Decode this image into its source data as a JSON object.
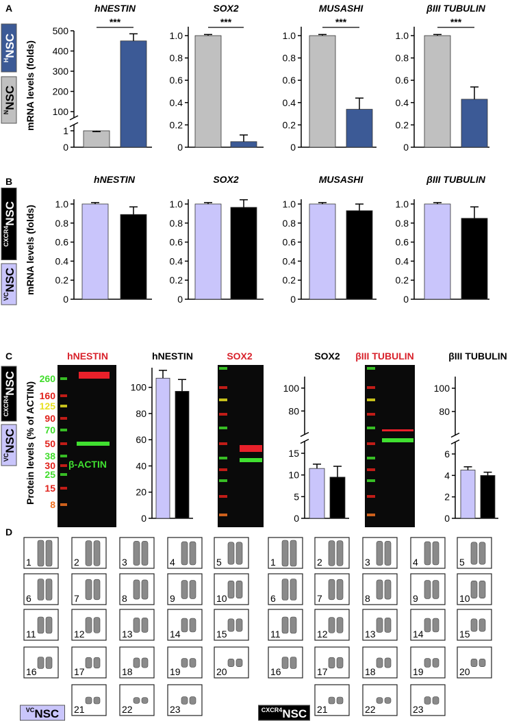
{
  "panels": [
    {
      "letter": "A",
      "y_label": "mRNA levels (folds)",
      "legend": [
        {
          "sup": "H",
          "label": "NSC",
          "color": "#3c5a96",
          "text_color": "#ffffff"
        },
        {
          "sup": "N",
          "label": "NSC",
          "color": "#c0c0c0",
          "text_color": "#000000"
        }
      ]
    },
    {
      "letter": "B",
      "y_label": "mRNA levels (folds)",
      "legend": [
        {
          "sup": "CXCR4",
          "label": "NSC",
          "color": "#000000",
          "text_color": "#ffffff"
        },
        {
          "sup": "VC",
          "label": "NSC",
          "color": "#c9c5fb",
          "text_color": "#000000"
        }
      ]
    },
    {
      "letter": "C",
      "y_label": "Protein levels (% of ACTIN)",
      "legend": [
        {
          "sup": "CXCR4",
          "label": "NSC",
          "color": "#000000",
          "text_color": "#ffffff"
        },
        {
          "sup": "VC",
          "label": "NSC",
          "color": "#c9c5fb",
          "text_color": "#000000"
        }
      ]
    },
    {
      "letter": "D"
    }
  ],
  "chart_data": [
    {
      "type": "bar",
      "title": "hNESTIN",
      "categories": [
        null,
        null
      ],
      "values": [
        1,
        450
      ],
      "errors": [
        0.05,
        35
      ],
      "colors": [
        "#c0c0c0",
        "#3c5a96"
      ],
      "ylim": [
        0,
        500
      ],
      "axis_break": [
        1,
        100
      ],
      "yticks": [
        0,
        1,
        100,
        200,
        300,
        400,
        500
      ],
      "annotation": "***"
    },
    {
      "type": "bar",
      "title": "SOX2",
      "categories": [
        null,
        null
      ],
      "values": [
        1,
        0.05
      ],
      "errors": [
        0.01,
        0.06
      ],
      "colors": [
        "#c0c0c0",
        "#3c5a96"
      ],
      "ylim": [
        0,
        1.08
      ],
      "yticks": [
        0,
        0.2,
        0.4,
        0.6,
        0.8,
        {
          "value": 1,
          "label": "1.0"
        }
      ],
      "annotation": "***"
    },
    {
      "type": "bar",
      "title": "MUSASHI",
      "categories": [
        null,
        null
      ],
      "values": [
        1,
        0.34
      ],
      "errors": [
        0.01,
        0.1
      ],
      "colors": [
        "#c0c0c0",
        "#3c5a96"
      ],
      "ylim": [
        0,
        1.08
      ],
      "yticks": [
        0,
        0.2,
        0.4,
        0.6,
        0.8,
        {
          "value": 1,
          "label": "1.0"
        }
      ],
      "annotation": "***"
    },
    {
      "type": "bar",
      "title": "βIII TUBULIN",
      "categories": [
        null,
        null
      ],
      "values": [
        1,
        0.43
      ],
      "errors": [
        0.01,
        0.11
      ],
      "colors": [
        "#c0c0c0",
        "#3c5a96"
      ],
      "ylim": [
        0,
        1.08
      ],
      "yticks": [
        0,
        0.2,
        0.4,
        0.6,
        0.8,
        {
          "value": 1,
          "label": "1.0"
        }
      ],
      "annotation": "***"
    },
    {
      "type": "bar",
      "title": "hNESTIN",
      "categories": [
        null,
        null
      ],
      "values": [
        1,
        0.89
      ],
      "errors": [
        0.015,
        0.08
      ],
      "colors": [
        "#c9c5fb",
        "#000000"
      ],
      "ylim": [
        0,
        1.05
      ],
      "yticks": [
        0,
        0.2,
        0.4,
        0.6,
        0.8,
        {
          "value": 1,
          "label": "1.0"
        }
      ]
    },
    {
      "type": "bar",
      "title": "SOX2",
      "categories": [
        null,
        null
      ],
      "values": [
        1,
        0.965
      ],
      "errors": [
        0.015,
        0.08
      ],
      "colors": [
        "#c9c5fb",
        "#000000"
      ],
      "ylim": [
        0,
        1.05
      ],
      "yticks": [
        0,
        0.2,
        0.4,
        0.6,
        0.8,
        {
          "value": 1,
          "label": "1.0"
        }
      ]
    },
    {
      "type": "bar",
      "title": "MUSASHI",
      "categories": [
        null,
        null
      ],
      "values": [
        1,
        0.93
      ],
      "errors": [
        0.015,
        0.07
      ],
      "colors": [
        "#c9c5fb",
        "#000000"
      ],
      "ylim": [
        0,
        1.05
      ],
      "yticks": [
        0,
        0.2,
        0.4,
        0.6,
        0.8,
        {
          "value": 1,
          "label": "1.0"
        }
      ]
    },
    {
      "type": "bar",
      "title": "βIII TUBULIN",
      "categories": [
        null,
        null
      ],
      "values": [
        1,
        0.85
      ],
      "errors": [
        0.015,
        0.12
      ],
      "colors": [
        "#c9c5fb",
        "#000000"
      ],
      "ylim": [
        0,
        1.05
      ],
      "yticks": [
        0,
        0.2,
        0.4,
        0.6,
        0.8,
        {
          "value": 1,
          "label": "1.0"
        }
      ]
    },
    {
      "type": "bar",
      "title": "hNESTIN",
      "categories": [
        null,
        null
      ],
      "values": [
        107,
        97
      ],
      "errors": [
        6,
        9
      ],
      "colors": [
        "#c9c5fb",
        "#000000"
      ],
      "ylim": [
        0,
        115
      ],
      "yticks": [
        0,
        20,
        40,
        60,
        80,
        100
      ]
    },
    {
      "type": "bar",
      "title": "SOX2",
      "categories": [
        null,
        null
      ],
      "values": [
        11.5,
        9.5
      ],
      "errors": [
        1,
        2.5
      ],
      "colors": [
        "#c9c5fb",
        "#000000"
      ],
      "ylim": [
        0,
        110
      ],
      "axis_break": [
        15,
        70
      ],
      "yticks": [
        0,
        5,
        10,
        15,
        80,
        100
      ]
    },
    {
      "type": "bar",
      "title": "βIII TUBULIN",
      "categories": [
        null,
        null
      ],
      "values": [
        4.5,
        4.0
      ],
      "errors": [
        0.3,
        0.3
      ],
      "colors": [
        "#c9c5fb",
        "#000000"
      ],
      "ylim": [
        0,
        110
      ],
      "axis_break": [
        6,
        70
      ],
      "yticks": [
        0,
        2,
        4,
        6,
        80,
        100
      ]
    }
  ],
  "blots": [
    {
      "title": "hNESTIN",
      "ladder": [
        260,
        160,
        125,
        90,
        70,
        50,
        38,
        30,
        25,
        15,
        8
      ],
      "ladder_colors": [
        "#3fdc2a",
        "#e0201a",
        "#e8e020",
        "#e0201a",
        "#3fdc2a",
        "#e0201a",
        "#3fdc2a",
        "#e0201a",
        "#3fdc2a",
        "#e0201a",
        "#f07020"
      ],
      "band_label": "β-ACTIN"
    },
    {
      "title": "SOX2"
    },
    {
      "title": "βIII TUBULIN"
    }
  ],
  "karyotypes": [
    {
      "legend_sup": "VC",
      "legend": "NSC",
      "numbers": [
        1,
        2,
        3,
        4,
        5,
        6,
        7,
        8,
        9,
        10,
        11,
        12,
        13,
        14,
        15,
        16,
        17,
        18,
        19,
        20,
        21,
        22,
        23
      ]
    },
    {
      "legend_sup": "CXCR4",
      "legend": "NSC",
      "numbers": [
        1,
        2,
        3,
        4,
        5,
        6,
        7,
        8,
        9,
        10,
        11,
        12,
        13,
        14,
        15,
        16,
        17,
        18,
        19,
        20,
        21,
        22,
        23
      ]
    }
  ]
}
